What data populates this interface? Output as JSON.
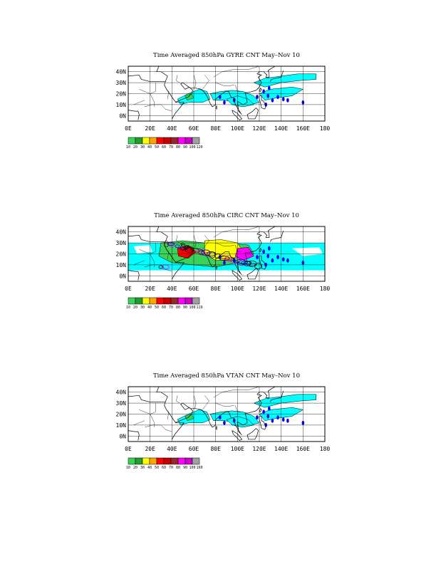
{
  "panels": [
    {
      "title": "Time Averaged 850hPa GYRE CNT May–Nov 10",
      "colorbar_labels": [
        "10",
        "20",
        "30",
        "40",
        "50",
        "60",
        "70",
        "80",
        "90",
        "100",
        "120"
      ],
      "intensity": "low"
    },
    {
      "title": "Time Averaged 850hPa CIRC CNT May–Nov 10",
      "colorbar_labels": [
        "10",
        "20",
        "30",
        "40",
        "50",
        "60",
        "70",
        "80",
        "90",
        "100",
        "119"
      ],
      "intensity": "high"
    },
    {
      "title": "Time Averaged 850hPa VTAN CNT May–Nov 10",
      "colorbar_labels": [
        "10",
        "20",
        "30",
        "40",
        "50",
        "60",
        "70",
        "80",
        "90",
        "100",
        "160"
      ],
      "intensity": "low"
    }
  ],
  "axes": {
    "x_ticks": [
      "0E",
      "20E",
      "40E",
      "60E",
      "80E",
      "100E",
      "120E",
      "140E",
      "160E",
      "180"
    ],
    "y_ticks": [
      "40N",
      "30N",
      "20N",
      "10N",
      "0N"
    ]
  },
  "colorbar_colors": [
    "#3cd25a",
    "#1f9e2d",
    "#ffff00",
    "#ffa500",
    "#ff0000",
    "#c80000",
    "#962828",
    "#ff00ff",
    "#c800c8",
    "#a0a0a0"
  ],
  "fill_color": "#00ffff",
  "ocean_color": "#ffffff"
}
